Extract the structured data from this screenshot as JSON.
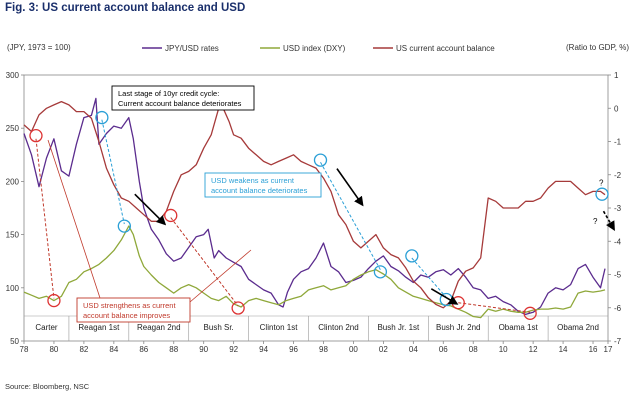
{
  "chart_data": {
    "type": "line",
    "title": "Fig. 3: US current account balance and USD",
    "left_axis_label": "(JPY, 1973 = 100)",
    "right_axis_label": "(Ratio to GDP, %)",
    "source": "Source: Bloomberg, NSC",
    "left_ylim": [
      50,
      300
    ],
    "left_ticks": [
      50,
      100,
      150,
      200,
      250,
      300
    ],
    "right_ylim": [
      -7,
      1
    ],
    "right_ticks": [
      1,
      0,
      -1,
      -2,
      -3,
      -4,
      -5,
      -6,
      -7
    ],
    "xlim": [
      1978,
      2017
    ],
    "x_ticks": [
      {
        "year": 1978,
        "label": "78"
      },
      {
        "year": 1980,
        "label": "80"
      },
      {
        "year": 1982,
        "label": "82"
      },
      {
        "year": 1984,
        "label": "84"
      },
      {
        "year": 1986,
        "label": "86"
      },
      {
        "year": 1988,
        "label": "88"
      },
      {
        "year": 1990,
        "label": "90"
      },
      {
        "year": 1992,
        "label": "92"
      },
      {
        "year": 1994,
        "label": "94"
      },
      {
        "year": 1996,
        "label": "96"
      },
      {
        "year": 1998,
        "label": "98"
      },
      {
        "year": 2000,
        "label": "00"
      },
      {
        "year": 2002,
        "label": "02"
      },
      {
        "year": 2004,
        "label": "04"
      },
      {
        "year": 2006,
        "label": "06"
      },
      {
        "year": 2008,
        "label": "08"
      },
      {
        "year": 2010,
        "label": "10"
      },
      {
        "year": 2012,
        "label": "12"
      },
      {
        "year": 2014,
        "label": "14"
      },
      {
        "year": 2016,
        "label": "16"
      },
      {
        "year": 2017,
        "label": "17"
      }
    ],
    "presidencies": [
      {
        "label": "Carter",
        "start": 1978,
        "end": 1981
      },
      {
        "label": "Reagan 1st",
        "start": 1981,
        "end": 1985
      },
      {
        "label": "Reagan 2nd",
        "start": 1985,
        "end": 1989
      },
      {
        "label": "Bush Sr.",
        "start": 1989,
        "end": 1993
      },
      {
        "label": "Clinton 1st",
        "start": 1993,
        "end": 1997
      },
      {
        "label": "Clinton 2nd",
        "start": 1997,
        "end": 2001
      },
      {
        "label": "Bush Jr. 1st",
        "start": 2001,
        "end": 2005
      },
      {
        "label": "Bush Jr. 2nd",
        "start": 2005,
        "end": 2009
      },
      {
        "label": "Obama 1st",
        "start": 2009,
        "end": 2013
      },
      {
        "label": "Obama 2nd",
        "start": 2013,
        "end": 2017
      }
    ],
    "series": [
      {
        "name": "JPY/USD rates",
        "axis": "left",
        "color": "#5b2c8e",
        "x": [
          1978.0,
          1978.5,
          1979.0,
          1979.5,
          1980.0,
          1980.5,
          1981.0,
          1981.5,
          1982.0,
          1982.5,
          1982.8,
          1983.0,
          1983.5,
          1984.0,
          1984.5,
          1985.0,
          1985.3,
          1985.7,
          1986.0,
          1986.5,
          1987.0,
          1987.5,
          1988.0,
          1988.5,
          1989.0,
          1989.5,
          1990.0,
          1990.3,
          1990.7,
          1991.0,
          1991.5,
          1992.0,
          1992.5,
          1993.0,
          1993.5,
          1994.0,
          1994.5,
          1995.0,
          1995.3,
          1995.6,
          1996.0,
          1996.5,
          1997.0,
          1997.5,
          1998.0,
          1998.5,
          1999.0,
          1999.5,
          2000.0,
          2000.5,
          2001.0,
          2001.5,
          2002.0,
          2002.5,
          2003.0,
          2003.5,
          2004.0,
          2004.5,
          2005.0,
          2005.5,
          2006.0,
          2006.5,
          2007.0,
          2007.5,
          2008.0,
          2008.5,
          2009.0,
          2009.5,
          2010.0,
          2010.5,
          2011.0,
          2011.5,
          2012.0,
          2012.5,
          2013.0,
          2013.5,
          2014.0,
          2014.5,
          2015.0,
          2015.5,
          2016.0,
          2016.5,
          2016.8
        ],
        "values": [
          245,
          225,
          195,
          222,
          240,
          210,
          205,
          235,
          260,
          262,
          278,
          235,
          245,
          252,
          250,
          260,
          240,
          200,
          175,
          155,
          145,
          132,
          125,
          128,
          138,
          148,
          150,
          155,
          128,
          135,
          128,
          124,
          120,
          108,
          103,
          98,
          95,
          84,
          82,
          96,
          108,
          115,
          118,
          128,
          142,
          120,
          115,
          105,
          107,
          110,
          118,
          125,
          130,
          120,
          116,
          110,
          105,
          112,
          110,
          115,
          117,
          112,
          118,
          110,
          100,
          98,
          90,
          92,
          87,
          84,
          78,
          75,
          77,
          82,
          95,
          100,
          98,
          103,
          118,
          122,
          110,
          100,
          118
        ]
      },
      {
        "name": "USD index (DXY)",
        "axis": "left",
        "color": "#8fa83a",
        "x": [
          1978.0,
          1978.5,
          1979.0,
          1979.5,
          1980.0,
          1980.5,
          1981.0,
          1981.5,
          1982.0,
          1982.5,
          1983.0,
          1983.5,
          1984.0,
          1984.5,
          1985.0,
          1985.3,
          1985.7,
          1986.0,
          1986.5,
          1987.0,
          1987.5,
          1988.0,
          1988.5,
          1989.0,
          1989.5,
          1990.0,
          1990.5,
          1991.0,
          1991.5,
          1992.0,
          1992.5,
          1993.0,
          1993.5,
          1994.0,
          1994.5,
          1995.0,
          1995.5,
          1996.0,
          1996.5,
          1997.0,
          1997.5,
          1998.0,
          1998.5,
          1999.0,
          1999.5,
          2000.0,
          2000.5,
          2001.0,
          2001.5,
          2002.0,
          2002.5,
          2003.0,
          2003.5,
          2004.0,
          2004.5,
          2005.0,
          2005.5,
          2006.0,
          2006.5,
          2007.0,
          2007.5,
          2008.0,
          2008.5,
          2009.0,
          2009.5,
          2010.0,
          2010.5,
          2011.0,
          2011.5,
          2012.0,
          2012.5,
          2013.0,
          2013.5,
          2014.0,
          2014.5,
          2015.0,
          2015.5,
          2016.0,
          2016.5,
          2016.8
        ],
        "values": [
          96,
          93,
          90,
          92,
          88,
          92,
          105,
          108,
          115,
          118,
          122,
          128,
          135,
          145,
          158,
          150,
          130,
          120,
          112,
          105,
          100,
          95,
          100,
          103,
          100,
          95,
          90,
          88,
          92,
          85,
          82,
          88,
          90,
          88,
          86,
          84,
          88,
          90,
          92,
          98,
          100,
          102,
          98,
          100,
          102,
          108,
          112,
          115,
          117,
          113,
          108,
          100,
          96,
          92,
          90,
          88,
          86,
          84,
          83,
          80,
          77,
          73,
          72,
          80,
          78,
          80,
          78,
          77,
          77,
          79,
          80,
          80,
          81,
          80,
          82,
          95,
          97,
          96,
          97,
          98
        ]
      },
      {
        "name": "US current account balance",
        "axis": "right",
        "color": "#a63a3a",
        "x": [
          1978.0,
          1978.5,
          1979.0,
          1979.5,
          1980.0,
          1980.5,
          1981.0,
          1981.5,
          1982.0,
          1982.5,
          1983.0,
          1983.5,
          1984.0,
          1984.5,
          1985.0,
          1985.5,
          1986.0,
          1986.5,
          1987.0,
          1987.5,
          1988.0,
          1988.5,
          1989.0,
          1989.5,
          1990.0,
          1990.5,
          1991.0,
          1991.3,
          1991.7,
          1992.0,
          1992.5,
          1993.0,
          1993.5,
          1994.0,
          1994.5,
          1995.0,
          1995.5,
          1996.0,
          1996.5,
          1997.0,
          1997.5,
          1998.0,
          1998.5,
          1999.0,
          1999.5,
          2000.0,
          2000.5,
          2001.0,
          2001.5,
          2002.0,
          2002.5,
          2003.0,
          2003.5,
          2004.0,
          2004.5,
          2005.0,
          2005.5,
          2006.0,
          2006.5,
          2007.0,
          2007.5,
          2008.0,
          2008.5,
          2009.0,
          2009.5,
          2010.0,
          2010.5,
          2011.0,
          2011.5,
          2012.0,
          2012.5,
          2013.0,
          2013.5,
          2014.0,
          2014.5,
          2015.0,
          2015.5,
          2016.0,
          2016.5,
          2016.8
        ],
        "values": [
          -0.5,
          -0.7,
          -0.2,
          0.0,
          0.1,
          0.2,
          0.1,
          -0.1,
          -0.1,
          -0.3,
          -1.0,
          -1.8,
          -2.3,
          -2.7,
          -2.8,
          -3.0,
          -3.2,
          -3.4,
          -3.4,
          -3.1,
          -2.5,
          -2.0,
          -1.9,
          -1.7,
          -1.2,
          -0.8,
          0.0,
          0.0,
          -0.4,
          -0.8,
          -0.9,
          -1.2,
          -1.4,
          -1.6,
          -1.7,
          -1.6,
          -1.5,
          -1.4,
          -1.6,
          -1.7,
          -1.8,
          -2.1,
          -2.5,
          -3.2,
          -3.5,
          -4.0,
          -4.2,
          -4.0,
          -3.8,
          -4.2,
          -4.4,
          -4.5,
          -4.8,
          -5.2,
          -5.4,
          -5.7,
          -5.9,
          -6.0,
          -5.8,
          -5.2,
          -4.9,
          -4.8,
          -4.5,
          -2.7,
          -2.8,
          -3.0,
          -3.0,
          -3.0,
          -2.8,
          -2.8,
          -2.7,
          -2.4,
          -2.2,
          -2.2,
          -2.2,
          -2.4,
          -2.6,
          -2.5,
          -2.5,
          -2.6
        ]
      }
    ],
    "annotations": [
      {
        "name": "annotation-credit-cycle",
        "lines": [
          "Last stage of 10yr credit cycle:",
          "Current account balance deteriorates"
        ],
        "color": "#000000"
      },
      {
        "name": "annotation-usd-weakens",
        "lines": [
          "USD weakens as current",
          "account balance deteriorates"
        ],
        "color": "#2a9fd6"
      },
      {
        "name": "annotation-usd-strengthens",
        "lines": [
          "USD strengthens as current",
          "account balance improves"
        ],
        "color": "#c0392b"
      }
    ],
    "question_marks": [
      "?",
      "?"
    ],
    "red_circles": [
      {
        "axis": "left",
        "x": 1978.8,
        "y": 243
      },
      {
        "axis": "left",
        "x": 1980.0,
        "y": 88
      },
      {
        "axis": "left",
        "x": 1987.8,
        "y": 168
      },
      {
        "axis": "left",
        "x": 1992.3,
        "y": 81
      },
      {
        "axis": "left",
        "x": 2007.0,
        "y": 86
      },
      {
        "axis": "left",
        "x": 2011.8,
        "y": 76
      }
    ],
    "blue_circles": [
      {
        "axis": "left",
        "x": 1983.2,
        "y": 260
      },
      {
        "axis": "left",
        "x": 1984.7,
        "y": 158
      },
      {
        "axis": "left",
        "x": 1997.8,
        "y": 220
      },
      {
        "axis": "left",
        "x": 2001.8,
        "y": 115
      },
      {
        "axis": "left",
        "x": 2003.9,
        "y": 130
      },
      {
        "axis": "left",
        "x": 2006.2,
        "y": 89
      },
      {
        "axis": "left",
        "x": 2016.6,
        "y": 188
      }
    ],
    "blue_dashed": [
      [
        [
          1983.2,
          258
        ],
        [
          1984.7,
          160
        ]
      ],
      [
        [
          1997.8,
          218
        ],
        [
          2001.8,
          117
        ]
      ],
      [
        [
          2003.9,
          128
        ],
        [
          2006.2,
          91
        ]
      ]
    ],
    "red_dashed": [
      [
        [
          1978.8,
          240
        ],
        [
          1980.0,
          90
        ]
      ],
      [
        [
          1987.8,
          166
        ],
        [
          1992.3,
          83
        ]
      ],
      [
        [
          2007.0,
          86
        ],
        [
          2011.8,
          77
        ]
      ]
    ],
    "black_arrows": [
      [
        [
          1985.4,
          188
        ],
        [
          1987.4,
          160
        ]
      ],
      [
        [
          1998.9,
          212
        ],
        [
          2000.6,
          178
        ]
      ],
      [
        [
          2005.2,
          99
        ],
        [
          2006.9,
          85
        ]
      ],
      [
        [
          2016.7,
          172
        ],
        [
          2017.4,
          155
        ]
      ]
    ]
  }
}
